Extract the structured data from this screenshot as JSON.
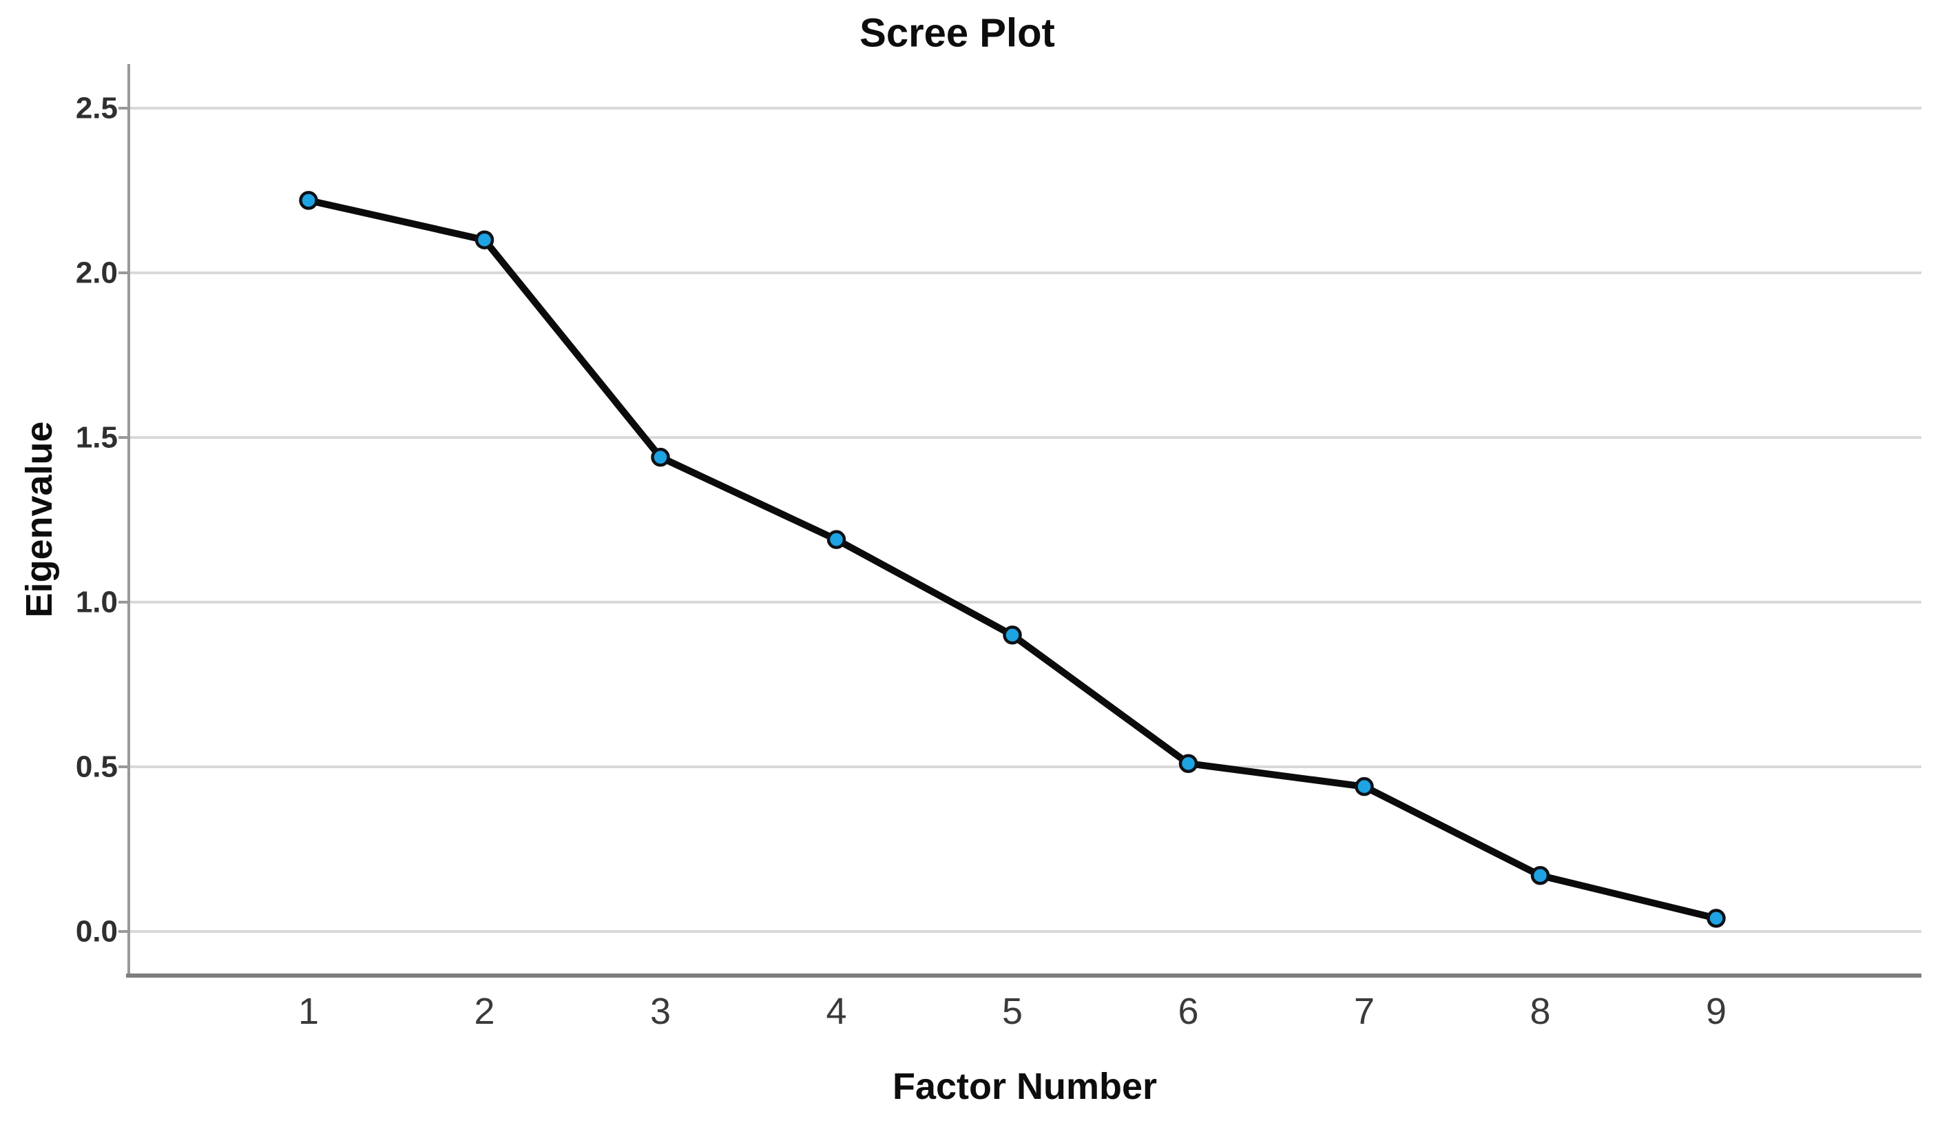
{
  "chart_data": {
    "type": "line",
    "title": "Scree Plot",
    "xlabel": "Factor Number",
    "ylabel": "Eigenvalue",
    "categories": [
      "1",
      "2",
      "3",
      "4",
      "5",
      "6",
      "7",
      "8",
      "9"
    ],
    "series": [
      {
        "name": "Eigenvalues",
        "values": [
          2.22,
          2.1,
          1.44,
          1.19,
          0.9,
          0.51,
          0.44,
          0.17,
          0.04
        ]
      }
    ],
    "y_tick_labels": [
      "0.0",
      "0.5",
      "1.0",
      "1.5",
      "2.0",
      "2.5"
    ],
    "y_tick_values": [
      0.0,
      0.5,
      1.0,
      1.5,
      2.0,
      2.5
    ],
    "ylim": [
      -0.135,
      2.635
    ],
    "grid": "horizontal",
    "legend_position": "none",
    "colors": {
      "line": "#0b0b0b",
      "marker_fill": "#1ea3e3",
      "marker_edge": "#0e1116",
      "gridline": "#d9d9d9",
      "axis_line": "#999999",
      "bottom_frame": "#7e7e7e",
      "y_tick_text": "#2f2f2f",
      "x_tick_text": "#3a3a3a",
      "background": "#ffffff"
    }
  }
}
